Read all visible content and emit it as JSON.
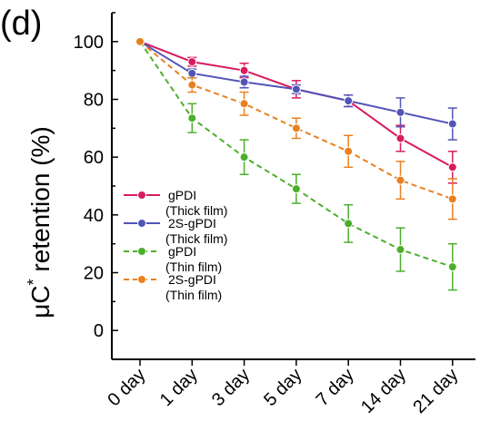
{
  "panel_label": "(d)",
  "chart_data": {
    "type": "line",
    "title": "",
    "xlabel": "",
    "ylabel": "μC* retention (%)",
    "ylabel_main": "μC",
    "ylabel_sup": "*",
    "ylabel_rest": " retention (%)",
    "ylim": [
      -10,
      110
    ],
    "yticks": [
      0,
      20,
      40,
      60,
      80,
      100
    ],
    "categories": [
      "0 day",
      "1 day",
      "3 day",
      "5 day",
      "7 day",
      "14 day",
      "21 day"
    ],
    "grid": false,
    "legend_position": "left",
    "series": [
      {
        "name": "gPDI",
        "name_sub": "(Thick film)",
        "color": "#d81b60",
        "dashed": false,
        "values": [
          100,
          93,
          90,
          83.5,
          79.5,
          66.5,
          56.5
        ],
        "errors": [
          0,
          1.5,
          2.5,
          3,
          2,
          4.5,
          5.5
        ]
      },
      {
        "name": "2S-gPDI",
        "name_sub": "(Thick film)",
        "color": "#5254b8",
        "dashed": false,
        "values": [
          100,
          89,
          86,
          83.5,
          79.5,
          75.5,
          71.5
        ],
        "errors": [
          0,
          1.5,
          2,
          1.5,
          2,
          5,
          5.5
        ]
      },
      {
        "name": "gPDI",
        "name_sub": "(Thin film)",
        "color": "#4caf2c",
        "dashed": true,
        "values": [
          100,
          73.5,
          60,
          49,
          37,
          28,
          22
        ],
        "errors": [
          0,
          5,
          6,
          5,
          6.5,
          7.5,
          8
        ]
      },
      {
        "name": "2S-gPDI",
        "name_sub": "(Thin film)",
        "color": "#e8801f",
        "dashed": true,
        "values": [
          100,
          85,
          78.5,
          70,
          62,
          52,
          45.5
        ],
        "errors": [
          0,
          2.5,
          4,
          3.5,
          5.5,
          6.5,
          7
        ]
      }
    ]
  }
}
